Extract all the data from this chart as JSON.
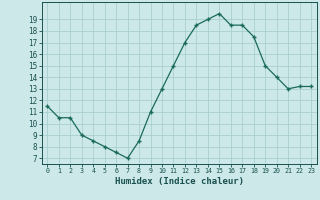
{
  "x": [
    0,
    1,
    2,
    3,
    4,
    5,
    6,
    7,
    8,
    9,
    10,
    11,
    12,
    13,
    14,
    15,
    16,
    17,
    18,
    19,
    20,
    21,
    22,
    23
  ],
  "y": [
    11.5,
    10.5,
    10.5,
    9.0,
    8.5,
    8.0,
    7.5,
    7.0,
    8.5,
    11.0,
    13.0,
    15.0,
    17.0,
    18.5,
    19.0,
    19.5,
    18.5,
    18.5,
    17.5,
    15.0,
    14.0,
    13.0,
    13.2,
    13.2
  ],
  "xlabel": "Humidex (Indice chaleur)",
  "ylim": [
    6.5,
    20.5
  ],
  "xlim": [
    -0.5,
    23.5
  ],
  "yticks": [
    7,
    8,
    9,
    10,
    11,
    12,
    13,
    14,
    15,
    16,
    17,
    18,
    19
  ],
  "xtick_labels": [
    "0",
    "1",
    "2",
    "3",
    "4",
    "5",
    "6",
    "7",
    "8",
    "9",
    "10",
    "11",
    "12",
    "13",
    "14",
    "15",
    "16",
    "17",
    "18",
    "19",
    "20",
    "21",
    "22",
    "23"
  ],
  "line_color": "#1a6b5a",
  "marker_color": "#1a6b5a",
  "bg_color": "#cce8e8",
  "grid_color": "#aacece",
  "font_color": "#1a5050"
}
